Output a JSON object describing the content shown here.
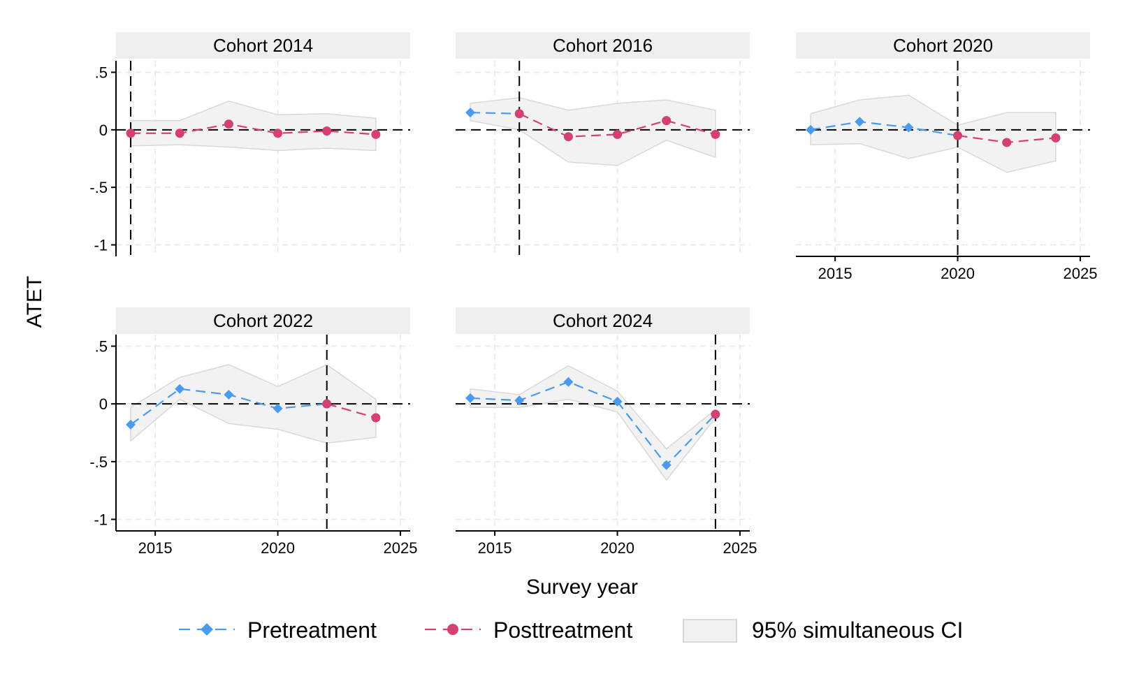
{
  "chart_data": {
    "type": "line",
    "ylabel": "ATET",
    "xlabel": "Survey year",
    "ylim": [
      -1.1,
      0.6
    ],
    "xlim": [
      2013.4,
      2025.4
    ],
    "yticks": [
      {
        "value": 0.5,
        "label": ".5"
      },
      {
        "value": 0,
        "label": "0"
      },
      {
        "value": -0.5,
        "label": "-.5"
      },
      {
        "value": -1,
        "label": "-1"
      }
    ],
    "xticks": [
      {
        "value": 2015,
        "label": "2015"
      },
      {
        "value": 2020,
        "label": "2020"
      },
      {
        "value": 2025,
        "label": "2025"
      }
    ],
    "grid": true,
    "legend": {
      "placement": "bottom",
      "items": [
        {
          "key": "pre",
          "label": "Pretreatment"
        },
        {
          "key": "post",
          "label": "Posttreatment"
        },
        {
          "key": "ci",
          "label": "95% simultaneous CI"
        }
      ]
    },
    "colors": {
      "pre": "#4a9bef",
      "post": "#d6406f",
      "ci_fill": "#f2f2f2",
      "ci_edge": "#d8d8d8",
      "strip": "#efefef",
      "reference": "#000000",
      "grid": "#e6e6e6"
    },
    "panels": [
      {
        "title": "Cohort 2014",
        "cohort": 2014,
        "years": [
          2014,
          2016,
          2018,
          2020,
          2022,
          2024
        ],
        "values": [
          -0.03,
          -0.03,
          0.05,
          -0.03,
          -0.01,
          -0.04
        ],
        "ci_low": [
          -0.14,
          -0.13,
          -0.15,
          -0.18,
          -0.16,
          -0.18
        ],
        "ci_high": [
          0.08,
          0.08,
          0.25,
          0.13,
          0.14,
          0.1
        ]
      },
      {
        "title": "Cohort 2016",
        "cohort": 2016,
        "years": [
          2014,
          2016,
          2018,
          2020,
          2022,
          2024
        ],
        "values": [
          0.15,
          0.14,
          -0.06,
          -0.04,
          0.08,
          -0.04
        ],
        "ci_low": [
          0.08,
          0.0,
          -0.28,
          -0.31,
          -0.09,
          -0.24
        ],
        "ci_high": [
          0.23,
          0.28,
          0.17,
          0.23,
          0.26,
          0.17
        ]
      },
      {
        "title": "Cohort 2020",
        "cohort": 2020,
        "years": [
          2014,
          2016,
          2018,
          2020,
          2022,
          2024
        ],
        "values": [
          0.0,
          0.07,
          0.02,
          -0.05,
          -0.11,
          -0.07
        ],
        "ci_low": [
          -0.13,
          -0.12,
          -0.25,
          -0.15,
          -0.37,
          -0.27
        ],
        "ci_high": [
          0.14,
          0.26,
          0.3,
          0.04,
          0.15,
          0.15
        ]
      },
      {
        "title": "Cohort 2022",
        "cohort": 2022,
        "years": [
          2014,
          2016,
          2018,
          2020,
          2022,
          2024
        ],
        "values": [
          -0.18,
          0.13,
          0.08,
          -0.04,
          0.0,
          -0.12
        ],
        "ci_low": [
          -0.32,
          0.04,
          -0.17,
          -0.22,
          -0.34,
          -0.29
        ],
        "ci_high": [
          -0.03,
          0.23,
          0.34,
          0.15,
          0.34,
          0.04
        ]
      },
      {
        "title": "Cohort 2024",
        "cohort": 2024,
        "years": [
          2014,
          2016,
          2018,
          2020,
          2022,
          2024
        ],
        "values": [
          0.05,
          0.03,
          0.19,
          0.02,
          -0.53,
          -0.09
        ],
        "ci_low": [
          -0.03,
          -0.03,
          0.04,
          -0.07,
          -0.66,
          -0.12
        ],
        "ci_high": [
          0.13,
          0.08,
          0.33,
          0.11,
          -0.39,
          -0.05
        ]
      }
    ]
  }
}
